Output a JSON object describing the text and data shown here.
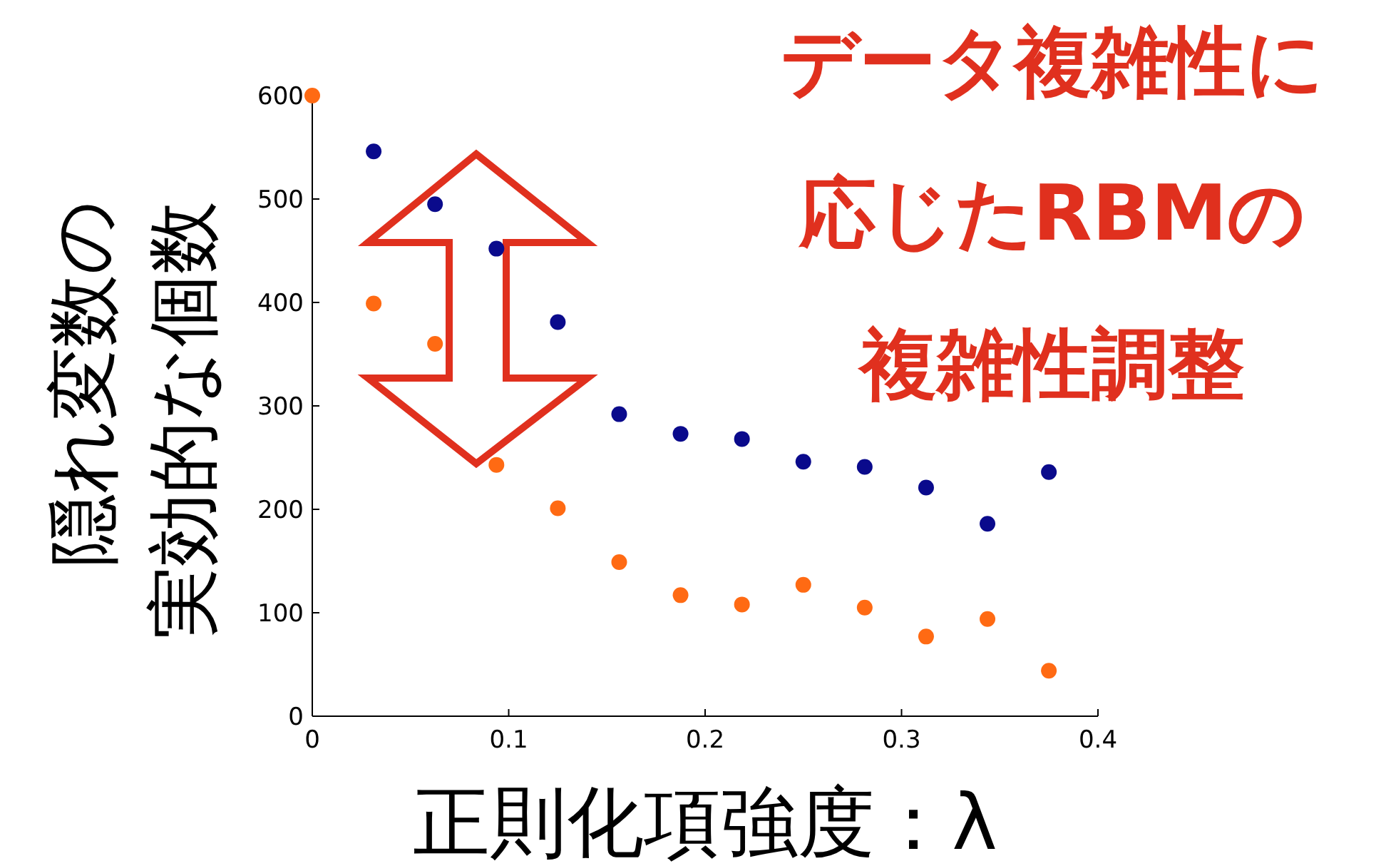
{
  "chart_data": {
    "type": "scatter",
    "xlabel": "正則化項強度：λ",
    "ylabel": "隠れ変数の実効的な個数",
    "annotations": [
      "データ複雑性に応じたRBMの複雑性調整"
    ],
    "series": [
      {
        "color": "#0a0a8c",
        "x": [
          0.03125,
          0.0625,
          0.09375,
          0.125,
          0.15625,
          0.1875,
          0.21875,
          0.25,
          0.28125,
          0.3125,
          0.34375,
          0.375
        ],
        "values": [
          546,
          495,
          452,
          381,
          292,
          273,
          268,
          246,
          241,
          221,
          186,
          236
        ]
      },
      {
        "color": "#ff6a13",
        "x": [
          0,
          0.03125,
          0.0625,
          0.09375,
          0.125,
          0.15625,
          0.1875,
          0.21875,
          0.25,
          0.28125,
          0.3125,
          0.34375,
          0.375
        ],
        "values": [
          600,
          399,
          360,
          243,
          201,
          149,
          117,
          108,
          127,
          105,
          77,
          94,
          44
        ]
      }
    ],
    "xlim": [
      0,
      0.4
    ],
    "ylim": [
      0,
      600
    ],
    "xticks": [
      0,
      0.1,
      0.2,
      0.3,
      0.4
    ],
    "yticks": [
      0,
      100,
      200,
      300,
      400,
      500,
      600
    ],
    "marker": "circle",
    "grid": false
  }
}
